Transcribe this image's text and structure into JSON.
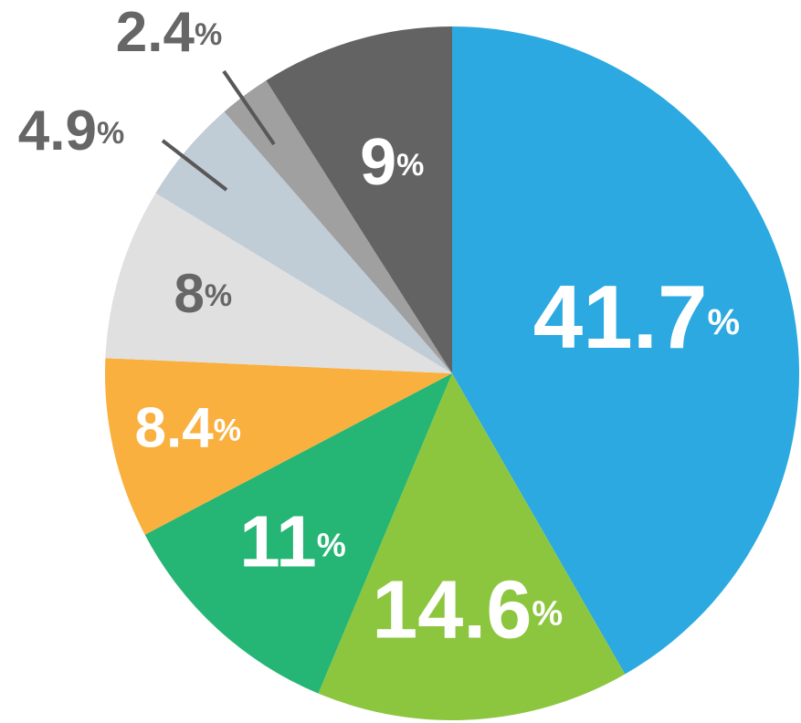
{
  "chart_data": {
    "type": "pie",
    "start_angle_deg": 0,
    "direction": "clockwise",
    "slices": [
      {
        "value": 41.7,
        "label": "41.7",
        "unit": "%",
        "color": "#2ba9e0",
        "label_color": "#ffffff",
        "label_style": "inside-large"
      },
      {
        "value": 14.6,
        "label": "14.6",
        "unit": "%",
        "color": "#8cc63f",
        "label_color": "#ffffff",
        "label_style": "inside-large"
      },
      {
        "value": 11,
        "label": "11",
        "unit": "%",
        "color": "#25b574",
        "label_color": "#ffffff",
        "label_style": "inside"
      },
      {
        "value": 8.4,
        "label": "8.4",
        "unit": "%",
        "color": "#f9b03f",
        "label_color": "#ffffff",
        "label_style": "inside"
      },
      {
        "value": 8,
        "label": "8",
        "unit": "%",
        "color": "#e0e0e0",
        "label_color": "#666666",
        "label_style": "inside"
      },
      {
        "value": 4.9,
        "label": "4.9",
        "unit": "%",
        "color": "#c0ccd6",
        "label_color": "#666666",
        "label_style": "callout"
      },
      {
        "value": 2.4,
        "label": "2.4",
        "unit": "%",
        "color": "#a0a0a0",
        "label_color": "#666666",
        "label_style": "callout"
      },
      {
        "value": 9,
        "label": "9",
        "unit": "%",
        "color": "#636363",
        "label_color": "#ffffff",
        "label_style": "inside"
      }
    ],
    "title": "",
    "legend": "none"
  }
}
